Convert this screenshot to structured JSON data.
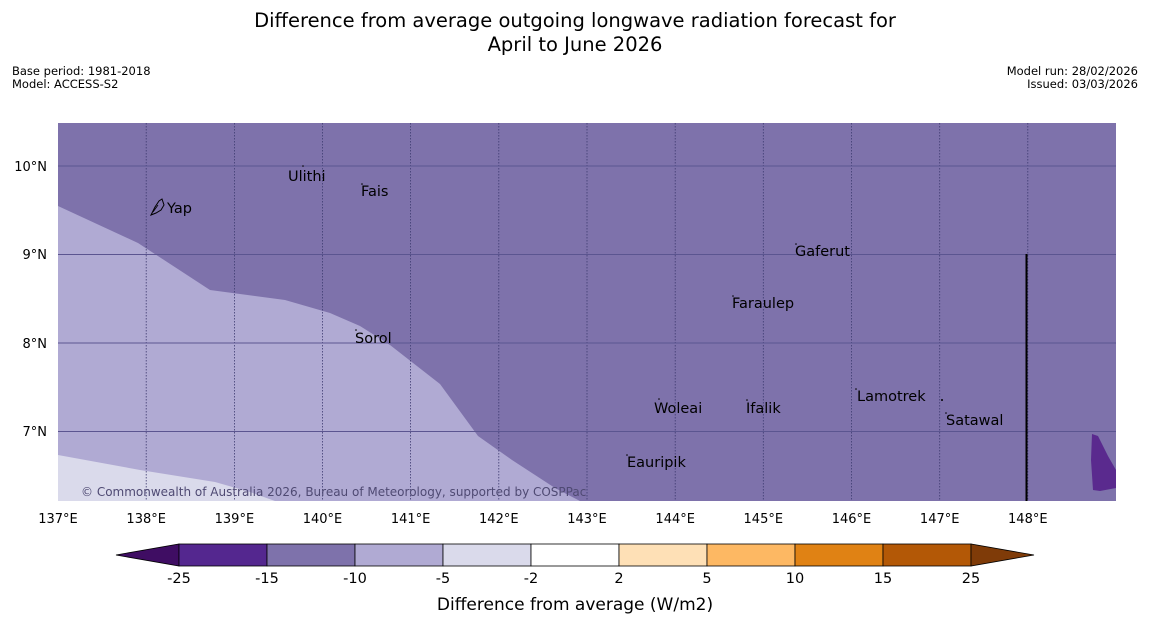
{
  "header": {
    "title_line1": "Difference from average outgoing longwave radiation forecast for",
    "title_line2": "April to June 2026",
    "base_period": "Base period: 1981-2018",
    "model": "Model: ACCESS-S2",
    "model_run": "Model run: 28/02/2026",
    "issued": "Issued: 03/03/2026"
  },
  "map": {
    "copyright": "© Commonwealth of Australia 2026, Bureau of Meteorology, supported by COSPPac",
    "lat_labels": [
      "10°N",
      "9°N",
      "8°N",
      "7°N"
    ],
    "lon_labels": [
      "137°E",
      "138°E",
      "139°E",
      "140°E",
      "141°E",
      "142°E",
      "143°E",
      "144°E",
      "145°E",
      "146°E",
      "147°E",
      "148°E"
    ],
    "places": [
      {
        "name": "Yap"
      },
      {
        "name": "Ulithi"
      },
      {
        "name": "Fais"
      },
      {
        "name": "Gaferut"
      },
      {
        "name": "Faraulep"
      },
      {
        "name": "Sorol"
      },
      {
        "name": "Woleai"
      },
      {
        "name": "Ifalik"
      },
      {
        "name": "Lamotrek"
      },
      {
        "name": "Satawal"
      },
      {
        "name": "Eauripik"
      }
    ],
    "colors": {
      "background": "#7e72ab",
      "light_band": "#b0aad3",
      "lightest_band": "#dadaeb",
      "strong": "#5a2a8e"
    }
  },
  "legend": {
    "title": "Difference from average (W/m2)",
    "ticks": [
      "-25",
      "-15",
      "-10",
      "-5",
      "-2",
      "2",
      "5",
      "10",
      "15",
      "25"
    ],
    "colors": [
      "#3f0d63",
      "#54278f",
      "#7e72ab",
      "#b0aad3",
      "#dadaeb",
      "#ffffff",
      "#fee0b6",
      "#fdb863",
      "#e08214",
      "#b35806",
      "#7f3b08"
    ]
  }
}
